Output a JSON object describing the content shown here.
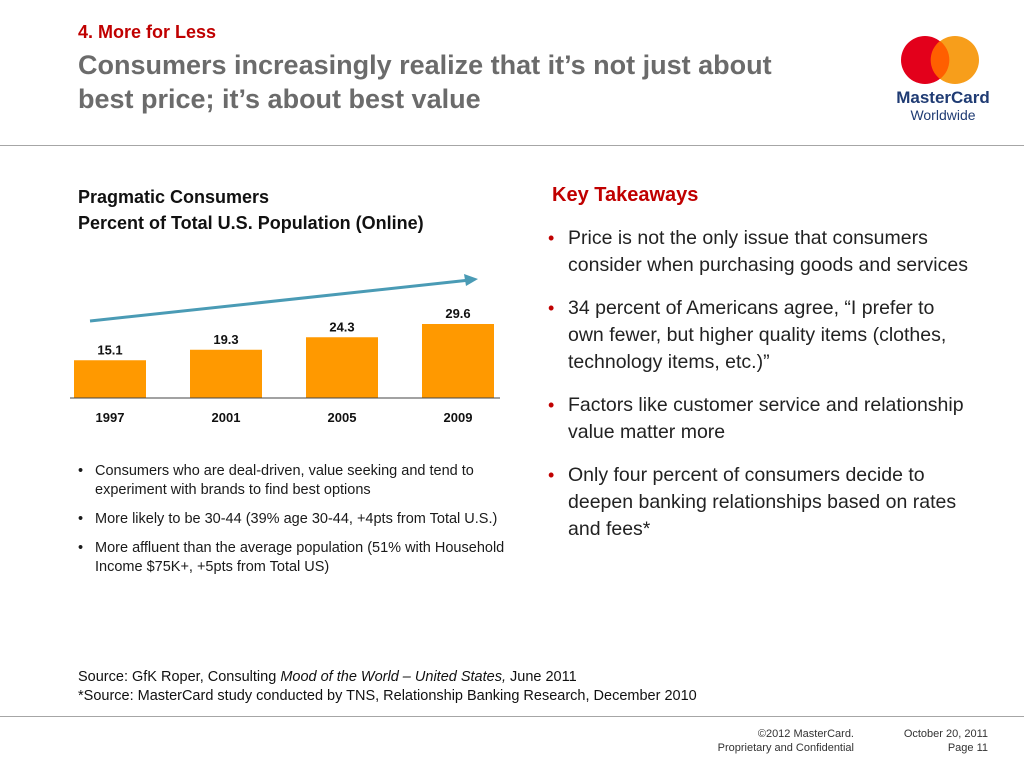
{
  "header": {
    "section": "4. More for Less",
    "headline": "Consumers increasingly realize that it’s not just about best price; it’s about best value"
  },
  "logo": {
    "brand_line1": "MasterCard",
    "brand_line2": "Worldwide",
    "colors": {
      "red": "#e3001b",
      "orange": "#f79e1b"
    }
  },
  "chart": {
    "title_line1": "Pragmatic Consumers",
    "title_line2": "Percent of Total U.S. Population (Online)"
  },
  "chart_data": {
    "type": "bar",
    "categories": [
      "1997",
      "2001",
      "2005",
      "2009"
    ],
    "values": [
      15.1,
      19.3,
      24.3,
      29.6
    ],
    "title": "Pragmatic Consumers Percent of Total U.S. Population (Online)",
    "xlabel": "",
    "ylabel": "",
    "ylim": [
      0,
      30
    ],
    "grid": false,
    "bar_color": "#ff9900",
    "trend_arrow_color": "#4a9bb5"
  },
  "left_bullets": [
    "Consumers who are deal-driven, value seeking and tend to experiment with brands to find best options",
    "More likely to be 30-44 (39% age 30-44, +4pts from Total U.S.)",
    "More affluent than the average population (51% with Household Income $75K+, +5pts from Total US)"
  ],
  "takeaways": {
    "title": "Key Takeaways",
    "items": [
      "Price is not the only issue that consumers consider when purchasing goods and services",
      "34 percent of Americans agree, “I prefer to own fewer, but higher quality items (clothes, technology items, etc.)”",
      "Factors like customer service and relationship value matter more",
      "Only four percent of consumers decide to deepen banking relationships based on rates and fees*"
    ]
  },
  "source": {
    "line1_prefix": "Source: GfK Roper, Consulting ",
    "line1_italic": "Mood of the World – United States,",
    "line1_suffix": " June 2011",
    "line2": "*Source: MasterCard study conducted by TNS, Relationship Banking Research, December 2010"
  },
  "footer": {
    "copyright": "©2012 MasterCard.",
    "confidential": "Proprietary and Confidential",
    "date": "October 20, 2011",
    "page": "Page 11"
  }
}
